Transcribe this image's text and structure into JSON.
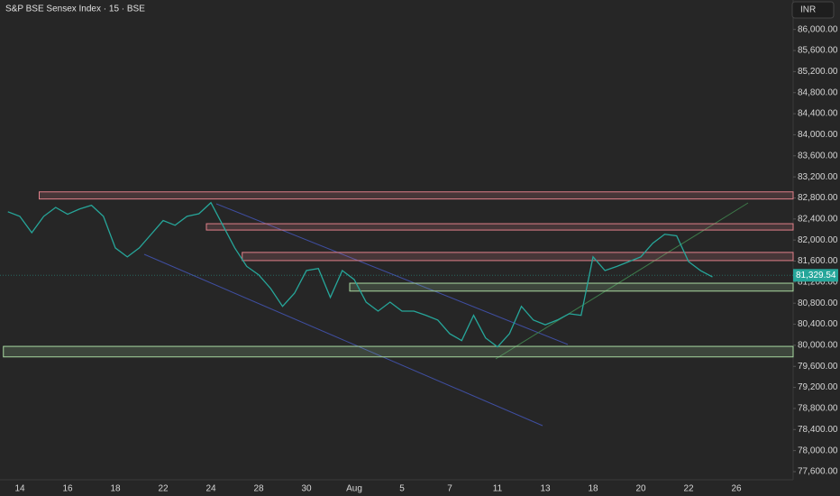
{
  "chart_data": {
    "type": "line",
    "title": "S&P BSE Sensex Index · 15 · BSE",
    "currency": "INR",
    "categories": [
      null,
      "14",
      null,
      null,
      null,
      "16",
      null,
      null,
      null,
      "18",
      null,
      null,
      null,
      "22",
      null,
      null,
      null,
      "24",
      null,
      null,
      null,
      "28",
      null,
      null,
      null,
      "30",
      null,
      null,
      null,
      "Aug",
      null,
      null,
      null,
      "5",
      null,
      null,
      null,
      "7",
      null,
      null,
      null,
      "11",
      null,
      null,
      null,
      "13",
      null,
      null,
      null,
      "18",
      null,
      null,
      null,
      "20",
      null,
      null,
      null,
      "22",
      null,
      null,
      null,
      "26"
    ],
    "series": [
      {
        "color": "#26a69a",
        "values": [
          82537,
          82450,
          82140,
          82450,
          82620,
          82490,
          82590,
          82660,
          82450,
          81850,
          81680,
          81850,
          82110,
          82370,
          82280,
          82450,
          82500,
          82710,
          82280,
          81850,
          81500,
          81340,
          81080,
          80740,
          80990,
          81420,
          81460,
          80910,
          81420,
          81250,
          80820,
          80650,
          80820,
          80650,
          80650,
          80570,
          80480,
          80220,
          80090,
          80570,
          80140,
          79970,
          80220,
          80740,
          80480,
          80390,
          80480,
          80600,
          80570,
          81680,
          81420,
          81500,
          81590,
          81680,
          81940,
          82110,
          82080,
          81590,
          81420,
          81300,
          null,
          null
        ]
      }
    ],
    "last_price": {
      "value": 81329.54,
      "label": "81,329.54"
    },
    "zones": [
      {
        "low": 82780,
        "high": 82915,
        "start": 3,
        "color": "#e0808a"
      },
      {
        "low": 82190,
        "high": 82310,
        "start": 17,
        "color": "#e0808a"
      },
      {
        "low": 81610,
        "high": 81765,
        "start": 20,
        "color": "#e0808a"
      },
      {
        "low": 81030,
        "high": 81180,
        "start": 29,
        "color": "#a8d8a0"
      },
      {
        "low": 79780,
        "high": 79980,
        "start": 0,
        "color": "#a8d8a0"
      }
    ],
    "ylim": [
      77480,
      86560
    ],
    "yticks": [
      {
        "value": 77600,
        "label": "77,600.00"
      },
      {
        "value": 78000,
        "label": "78,000.00"
      },
      {
        "value": 78400,
        "label": "78,400.00"
      },
      {
        "value": 78800,
        "label": "78,800.00"
      },
      {
        "value": 79200,
        "label": "79,200.00"
      },
      {
        "value": 79600,
        "label": "79,600.00"
      },
      {
        "value": 80000,
        "label": "80,000.00"
      },
      {
        "value": 80400,
        "label": "80,400.00"
      },
      {
        "value": 80800,
        "label": "80,800.00"
      },
      {
        "value": 81200,
        "label": "81,200.00"
      },
      {
        "value": 81600,
        "label": "81,600.00"
      },
      {
        "value": 82000,
        "label": "82,000.00"
      },
      {
        "value": 82400,
        "label": "82,400.00"
      },
      {
        "value": 82800,
        "label": "82,800.00"
      },
      {
        "value": 83200,
        "label": "83,200.00"
      },
      {
        "value": 83600,
        "label": "83,600.00"
      },
      {
        "value": 84000,
        "label": "84,000.00"
      },
      {
        "value": 84400,
        "label": "84,400.00"
      },
      {
        "value": 84800,
        "label": "84,800.00"
      },
      {
        "value": 85200,
        "label": "85,200.00"
      },
      {
        "value": 85600,
        "label": "85,600.00"
      },
      {
        "value": 86000,
        "label": "86,000.00"
      }
    ]
  }
}
